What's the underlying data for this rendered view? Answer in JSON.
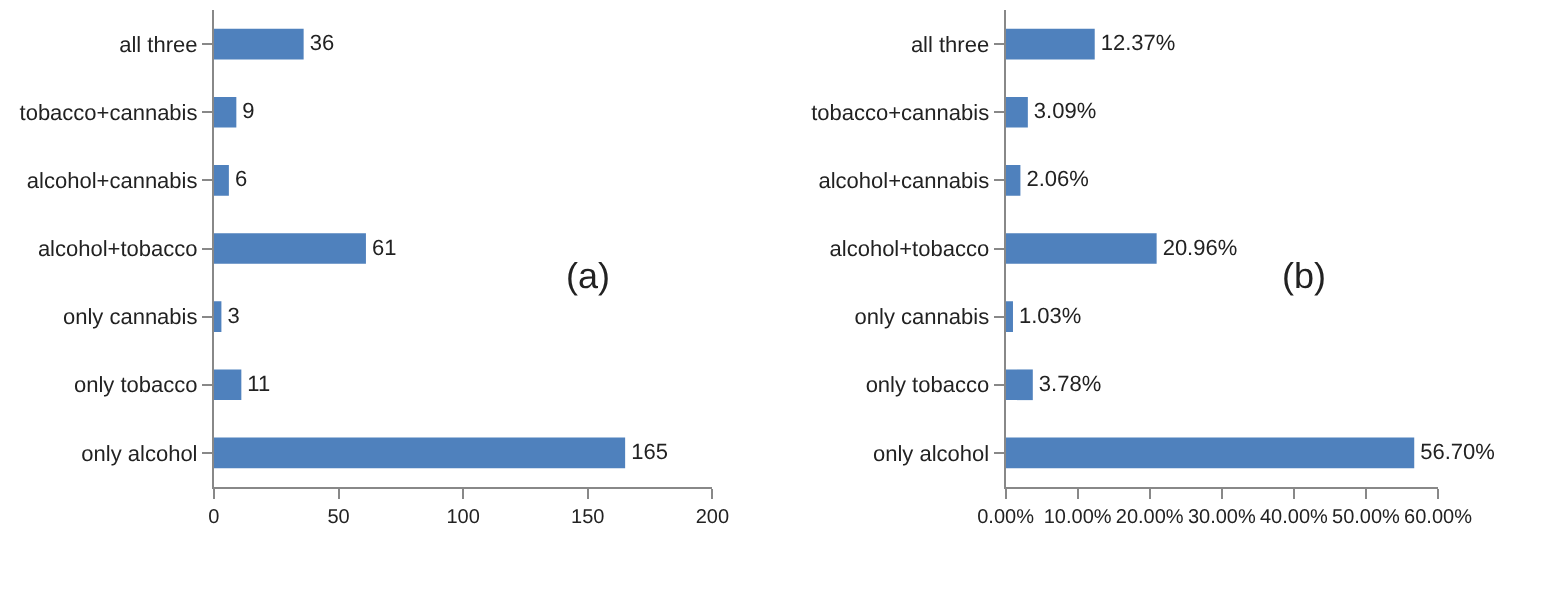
{
  "chart_data": [
    {
      "type": "bar",
      "orientation": "horizontal",
      "categories": [
        "all three",
        "tobacco+cannabis",
        "alcohol+cannabis",
        "alcohol+tobacco",
        "only cannabis",
        "only tobacco",
        "only alcohol"
      ],
      "values": [
        36,
        9,
        6,
        61,
        3,
        11,
        165
      ],
      "color": "#4f81bd",
      "data_labels": true,
      "xlim": [
        0,
        200
      ],
      "xticks": [
        0,
        50,
        100,
        150,
        200
      ],
      "annotations": [
        "(a)"
      ]
    },
    {
      "type": "bar",
      "orientation": "horizontal",
      "categories": [
        "all three",
        "tobacco+cannabis",
        "alcohol+cannabis",
        "alcohol+tobacco",
        "only cannabis",
        "only tobacco",
        "only alcohol"
      ],
      "values": [
        12.37,
        3.09,
        2.06,
        20.96,
        1.03,
        3.78,
        56.7
      ],
      "value_labels": [
        "12.37%",
        "3.09%",
        "2.06%",
        "20.96%",
        "1.03%",
        "3.78%",
        "56.70%"
      ],
      "color": "#4f81bd",
      "xlim": [
        0,
        60
      ],
      "xticks": [
        {
          "value": 0,
          "label": "0.00%"
        },
        {
          "value": 10,
          "label": "10.00%"
        },
        {
          "value": 20,
          "label": "20.00%"
        },
        {
          "value": 30,
          "label": "30.00%"
        },
        {
          "value": 40,
          "label": "40.00%"
        },
        {
          "value": 50,
          "label": "50.00%"
        },
        {
          "value": 60,
          "label": "60.00%"
        }
      ],
      "annotations": [
        "(b)"
      ]
    }
  ]
}
